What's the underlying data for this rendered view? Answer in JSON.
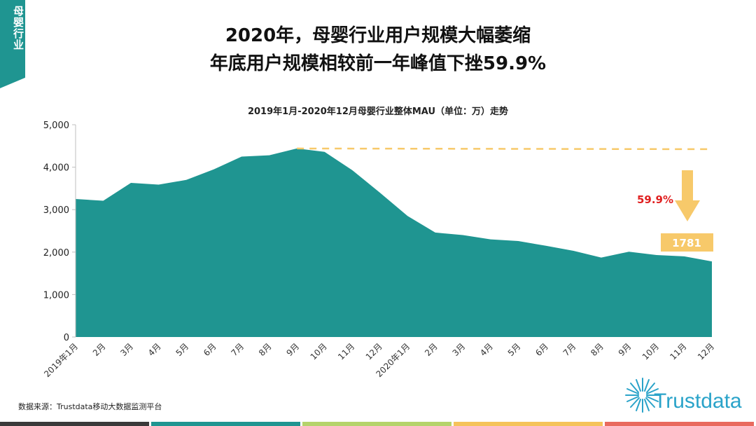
{
  "side_tab": {
    "label": "母婴行业",
    "color": "#1f9591"
  },
  "title": {
    "line1": "2020年，母婴行业用户规模大幅萎缩",
    "line2": "年底用户规模相较前一年峰值下挫59.9%"
  },
  "source": "数据来源：Trustdata移动大数据监测平台",
  "logo": {
    "text": "Trustdata",
    "icon": "sunburst-icon",
    "color": "#2aa3c9"
  },
  "footer_colors": [
    "#3a3a3a",
    "#1f9591",
    "#b5d36b",
    "#f5c35a",
    "#e96a5e"
  ],
  "colors": {
    "area": "#1f9591",
    "annotation": "#f7c96a",
    "highlight_text": "#e02020"
  },
  "chart_data": {
    "type": "area",
    "title": "2019年1月-2020年12月母婴行业整体MAU（单位：万）走势",
    "categories": [
      "2019年1月",
      "2月",
      "3月",
      "4月",
      "5月",
      "6月",
      "7月",
      "8月",
      "9月",
      "10月",
      "11月",
      "12月",
      "2020年1月",
      "2月",
      "3月",
      "4月",
      "5月",
      "6月",
      "7月",
      "8月",
      "9月",
      "10月",
      "11月",
      "12月"
    ],
    "series": [
      {
        "values": [
          3250,
          3210,
          3630,
          3590,
          3700,
          3950,
          4250,
          4280,
          4440,
          4360,
          3930,
          3400,
          2850,
          2460,
          2400,
          2300,
          2260,
          2150,
          2030,
          1870,
          2010,
          1930,
          1900,
          1781
        ]
      }
    ],
    "ylim": [
      0,
      5000
    ],
    "yticks": [
      0,
      1000,
      2000,
      3000,
      4000,
      5000
    ],
    "ytick_labels": [
      "0",
      "1,000",
      "2,000",
      "3,000",
      "4,000",
      "5,000"
    ],
    "grid": false,
    "legend": "none",
    "annotations": {
      "peak_line_value": 4440,
      "decline_label": "59.9%",
      "last_value_label": "1781"
    }
  }
}
